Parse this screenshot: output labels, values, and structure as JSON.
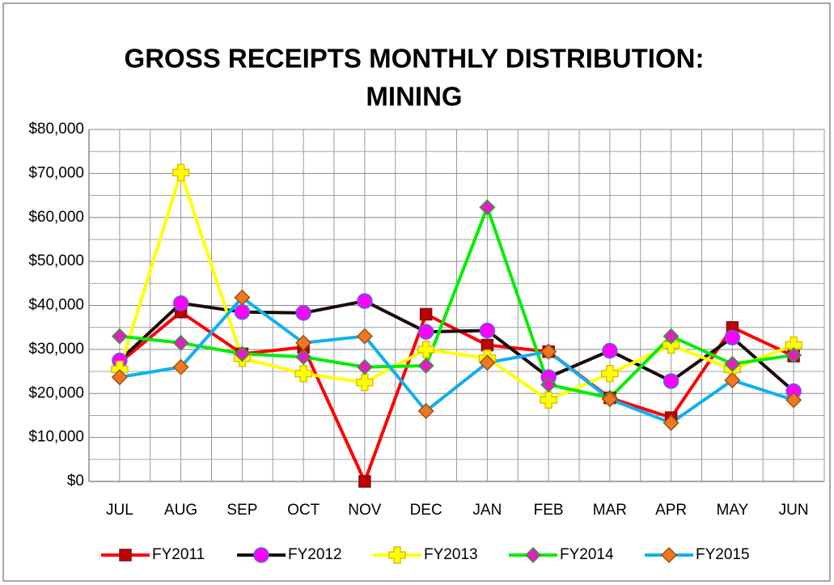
{
  "chart_data": {
    "type": "line",
    "title": [
      "GROSS RECEIPTS MONTHLY DISTRIBUTION:",
      "MINING"
    ],
    "categories": [
      "JUL",
      "AUG",
      "SEP",
      "OCT",
      "NOV",
      "DEC",
      "JAN",
      "FEB",
      "MAR",
      "APR",
      "MAY",
      "JUN"
    ],
    "series": [
      {
        "name": "FY2011",
        "color": "#ff0000",
        "marker": "square",
        "marker_color": "#c00000",
        "marker_edge": "#7f1010",
        "values": [
          27000,
          38500,
          29000,
          30500,
          0,
          38000,
          31000,
          29500,
          19000,
          14500,
          35000,
          28500
        ]
      },
      {
        "name": "FY2012",
        "color": "#1a0a0a",
        "marker": "circle",
        "marker_color": "#ff00ff",
        "marker_edge": "#4f6fd0",
        "values": [
          27500,
          40500,
          38500,
          38300,
          41000,
          34000,
          34300,
          23700,
          29700,
          22800,
          32700,
          20500
        ]
      },
      {
        "name": "FY2013",
        "color": "#ffff00",
        "marker": "plus",
        "marker_color": "#ffff00",
        "marker_edge": "#e0c000",
        "values": [
          25500,
          70200,
          28000,
          24500,
          22500,
          30000,
          28000,
          18500,
          24500,
          31000,
          25500,
          31000
        ]
      },
      {
        "name": "FY2014",
        "color": "#00ee00",
        "marker": "diamond",
        "marker_color": "#e020c0",
        "marker_edge": "#30a030",
        "values": [
          33000,
          31500,
          29000,
          28300,
          26000,
          26300,
          62300,
          22000,
          19000,
          33000,
          26700,
          28700
        ]
      },
      {
        "name": "FY2015",
        "color": "#10b0f0",
        "marker": "diamond",
        "marker_color": "#f07820",
        "marker_edge": "#a05010",
        "values": [
          23700,
          26000,
          41800,
          31500,
          33000,
          16000,
          27000,
          29500,
          18700,
          13300,
          23000,
          18500
        ]
      }
    ],
    "ylim": [
      0,
      80000
    ],
    "yticks": [
      {
        "value": 0,
        "label": "$0"
      },
      {
        "value": 10000,
        "label": "$10,000"
      },
      {
        "value": 20000,
        "label": "$20,000"
      },
      {
        "value": 30000,
        "label": "$30,000"
      },
      {
        "value": 40000,
        "label": "$40,000"
      },
      {
        "value": 50000,
        "label": "$50,000"
      },
      {
        "value": 60000,
        "label": "$60,000"
      },
      {
        "value": 70000,
        "label": "$70,000"
      },
      {
        "value": 80000,
        "label": "$80,000"
      }
    ],
    "grid": true,
    "legend": "bottom"
  }
}
